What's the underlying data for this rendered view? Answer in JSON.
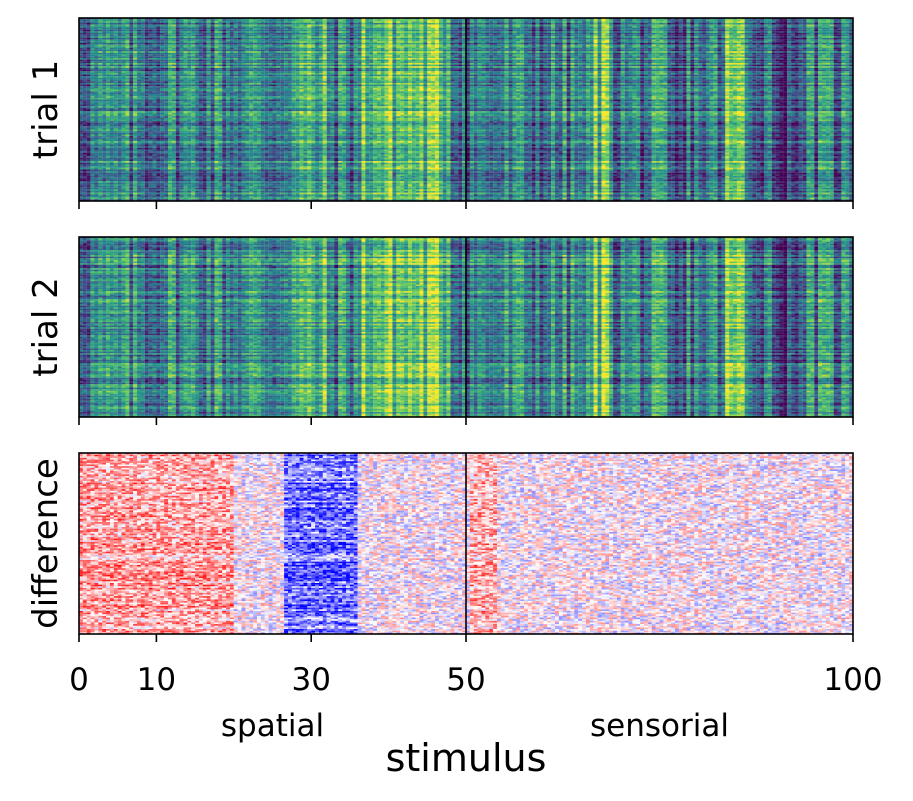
{
  "chart_data": {
    "type": "heatmap",
    "panels": [
      {
        "ylabel": "trial 1",
        "colormap": "viridis"
      },
      {
        "ylabel": "trial 2",
        "colormap": "viridis"
      },
      {
        "ylabel": "difference",
        "colormap": "bwr"
      }
    ],
    "xlabel": "stimulus",
    "xlim": [
      0,
      100
    ],
    "xticks": [
      0,
      10,
      30,
      50,
      100
    ],
    "xtick_labels": [
      "0",
      "10",
      "30",
      "50",
      "100"
    ],
    "divider_x": 50,
    "regions": [
      {
        "label": "spatial",
        "range": [
          0,
          50
        ]
      },
      {
        "label": "sensorial",
        "range": [
          50,
          100
        ]
      }
    ],
    "grid": false,
    "shared_x": true
  }
}
